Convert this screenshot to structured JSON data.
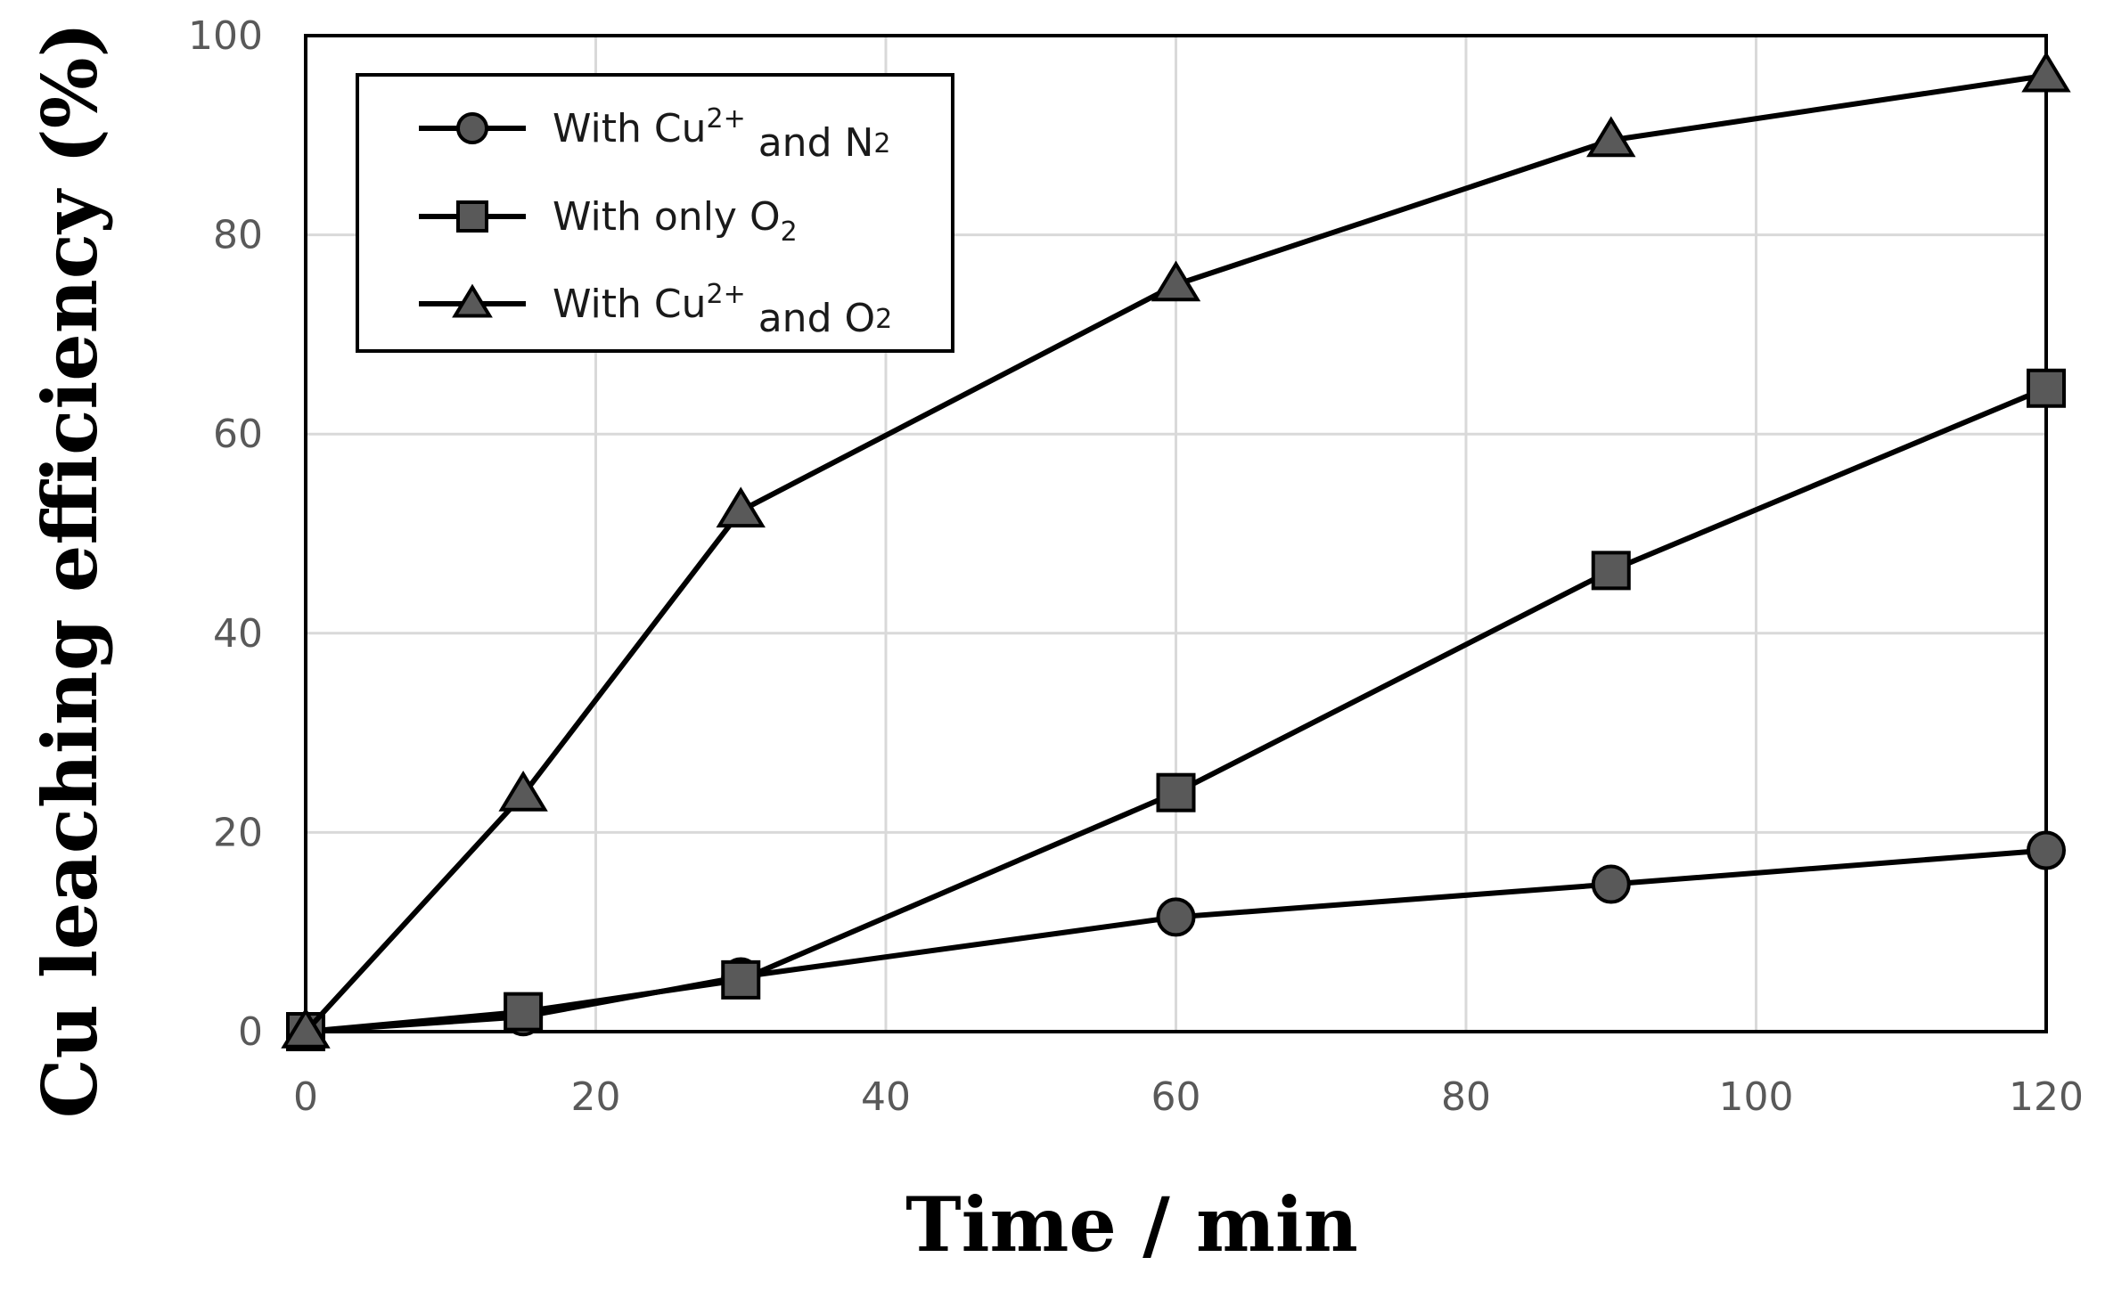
{
  "chart_data": {
    "type": "line",
    "title": "",
    "xlabel": "Time / min",
    "ylabel": "Cu leaching efficiency (%)",
    "xlim": [
      0,
      120
    ],
    "ylim": [
      0,
      100
    ],
    "xticks": [
      0,
      20,
      40,
      60,
      80,
      100,
      120
    ],
    "yticks": [
      0,
      20,
      40,
      60,
      80,
      100
    ],
    "grid": true,
    "legend_position": "top-left",
    "series_color": "#000000",
    "marker_fill": "#595959",
    "series": [
      {
        "name": "With Cu2+ and N2",
        "legend": {
          "pre": "With  Cu",
          "sup": "2+",
          "mid": "  and  N",
          "sub": "2"
        },
        "marker": "circle",
        "x": [
          0,
          15,
          30,
          60,
          90,
          120
        ],
        "y": [
          0,
          1.5,
          5.5,
          11.5,
          14.8,
          18.2
        ]
      },
      {
        "name": "With only O2",
        "legend": {
          "pre": "With  only  O",
          "sup": "",
          "mid": "",
          "sub": "2"
        },
        "marker": "square",
        "x": [
          0,
          15,
          30,
          60,
          90,
          120
        ],
        "y": [
          0,
          2.0,
          5.2,
          24.0,
          46.3,
          64.6
        ]
      },
      {
        "name": "With Cu2+ and O2",
        "legend": {
          "pre": "With  Cu",
          "sup": "2+",
          "mid": "  and  O",
          "sub": "2"
        },
        "marker": "triangle",
        "x": [
          0,
          15,
          30,
          60,
          90,
          120
        ],
        "y": [
          0,
          23.8,
          52.3,
          75.0,
          89.5,
          96.0
        ]
      }
    ]
  }
}
